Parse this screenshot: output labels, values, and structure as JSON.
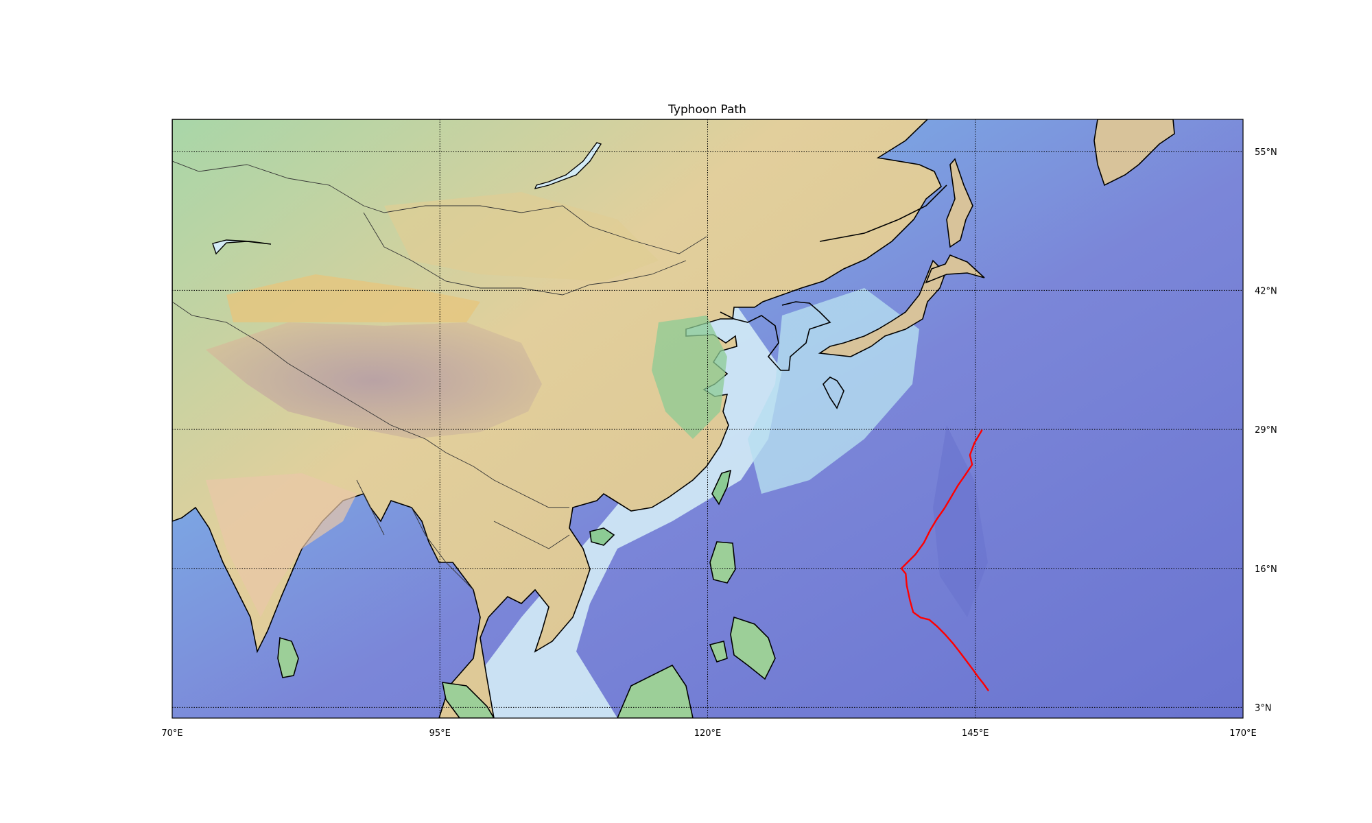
{
  "title": "Typhoon Path",
  "map": {
    "projection": "equirectangular",
    "lon_range": [
      70,
      170
    ],
    "lat_range": [
      2,
      58
    ],
    "background": "shaded relief (land terrain colors, ocean bathymetry blues)",
    "graticule_style": "dotted"
  },
  "meridians": [
    {
      "lon": 70,
      "label": "70°E"
    },
    {
      "lon": 95,
      "label": "95°E"
    },
    {
      "lon": 120,
      "label": "120°E"
    },
    {
      "lon": 145,
      "label": "145°E"
    },
    {
      "lon": 170,
      "label": "170°E"
    }
  ],
  "parallels": [
    {
      "lat": 55,
      "label": "55°N"
    },
    {
      "lat": 42,
      "label": "42°N"
    },
    {
      "lat": 29,
      "label": "29°N"
    },
    {
      "lat": 16,
      "label": "16°N"
    },
    {
      "lat": 3,
      "label": "3°N"
    }
  ],
  "colors": {
    "track": "#ff0000",
    "coastline": "#000000",
    "ocean_deep": "#7b86d8",
    "ocean_shallow": "#d8ecf6",
    "land_low": "#8cc99a",
    "land_high": "#d9c190",
    "plateau": "#b79fa8"
  },
  "typhoon_track": {
    "color": "#ff0000",
    "points": [
      [
        146.2,
        4.6
      ],
      [
        145.7,
        5.3
      ],
      [
        145.3,
        5.8
      ],
      [
        144.8,
        6.5
      ],
      [
        144.2,
        7.3
      ],
      [
        143.6,
        8.1
      ],
      [
        142.9,
        9.0
      ],
      [
        142.2,
        9.8
      ],
      [
        141.4,
        10.6
      ],
      [
        140.7,
        11.2
      ],
      [
        139.9,
        11.4
      ],
      [
        139.2,
        11.9
      ],
      [
        138.9,
        13.0
      ],
      [
        138.6,
        14.4
      ],
      [
        138.5,
        15.5
      ],
      [
        138.1,
        16.0
      ],
      [
        138.7,
        16.6
      ],
      [
        139.4,
        17.3
      ],
      [
        140.2,
        18.4
      ],
      [
        140.8,
        19.6
      ],
      [
        141.4,
        20.6
      ],
      [
        142.1,
        21.6
      ],
      [
        142.7,
        22.6
      ],
      [
        143.4,
        23.8
      ],
      [
        144.1,
        24.8
      ],
      [
        144.7,
        25.7
      ],
      [
        144.5,
        26.6
      ],
      [
        144.9,
        27.7
      ],
      [
        145.6,
        28.9
      ]
    ]
  }
}
